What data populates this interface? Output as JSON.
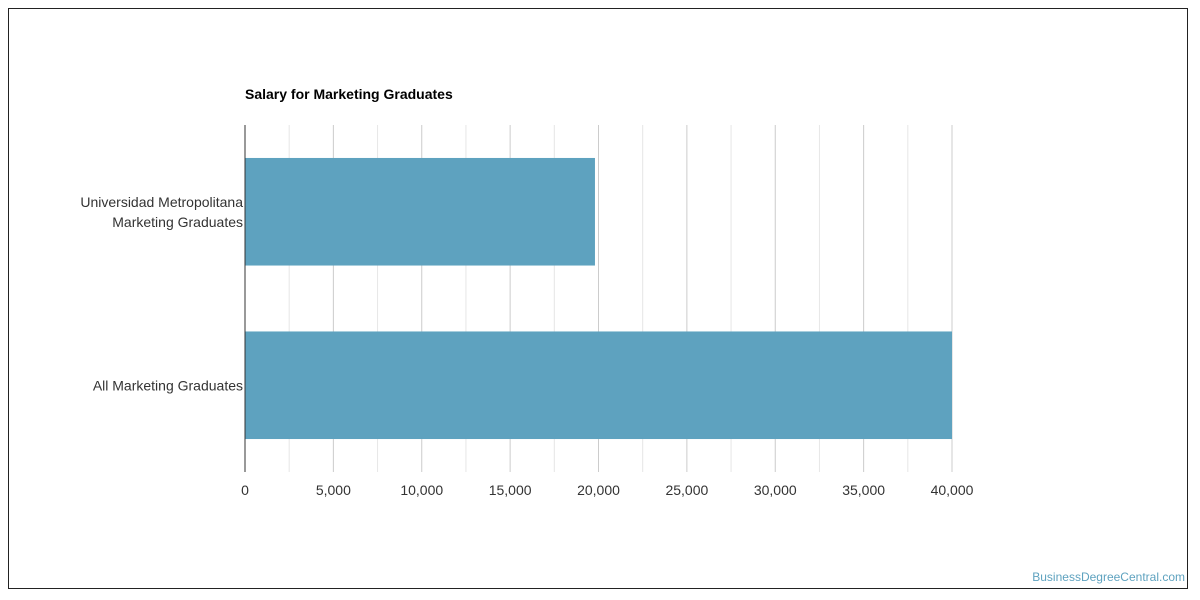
{
  "chart_data": {
    "type": "bar",
    "orientation": "horizontal",
    "title": "Salary for Marketing Graduates",
    "categories": [
      [
        "Universidad Metropolitana",
        "Marketing Graduates"
      ],
      [
        "All Marketing Graduates"
      ]
    ],
    "values": [
      19800,
      40000
    ],
    "xlim": [
      0,
      40000
    ],
    "x_ticks": [
      "0",
      "5,000",
      "10,000",
      "15,000",
      "20,000",
      "25,000",
      "30,000",
      "35,000",
      "40,000"
    ],
    "grid": true,
    "legend": "none",
    "bar_color": "#5ea2bf"
  },
  "watermark": "BusinessDegreeCentral.com",
  "colors": {
    "bar": "#5ea2bf",
    "watermark": "#5ea2bf",
    "grid_major": "#cccccc",
    "grid_minor": "#e6e6e6",
    "axis": "#333333",
    "text": "#333333"
  }
}
